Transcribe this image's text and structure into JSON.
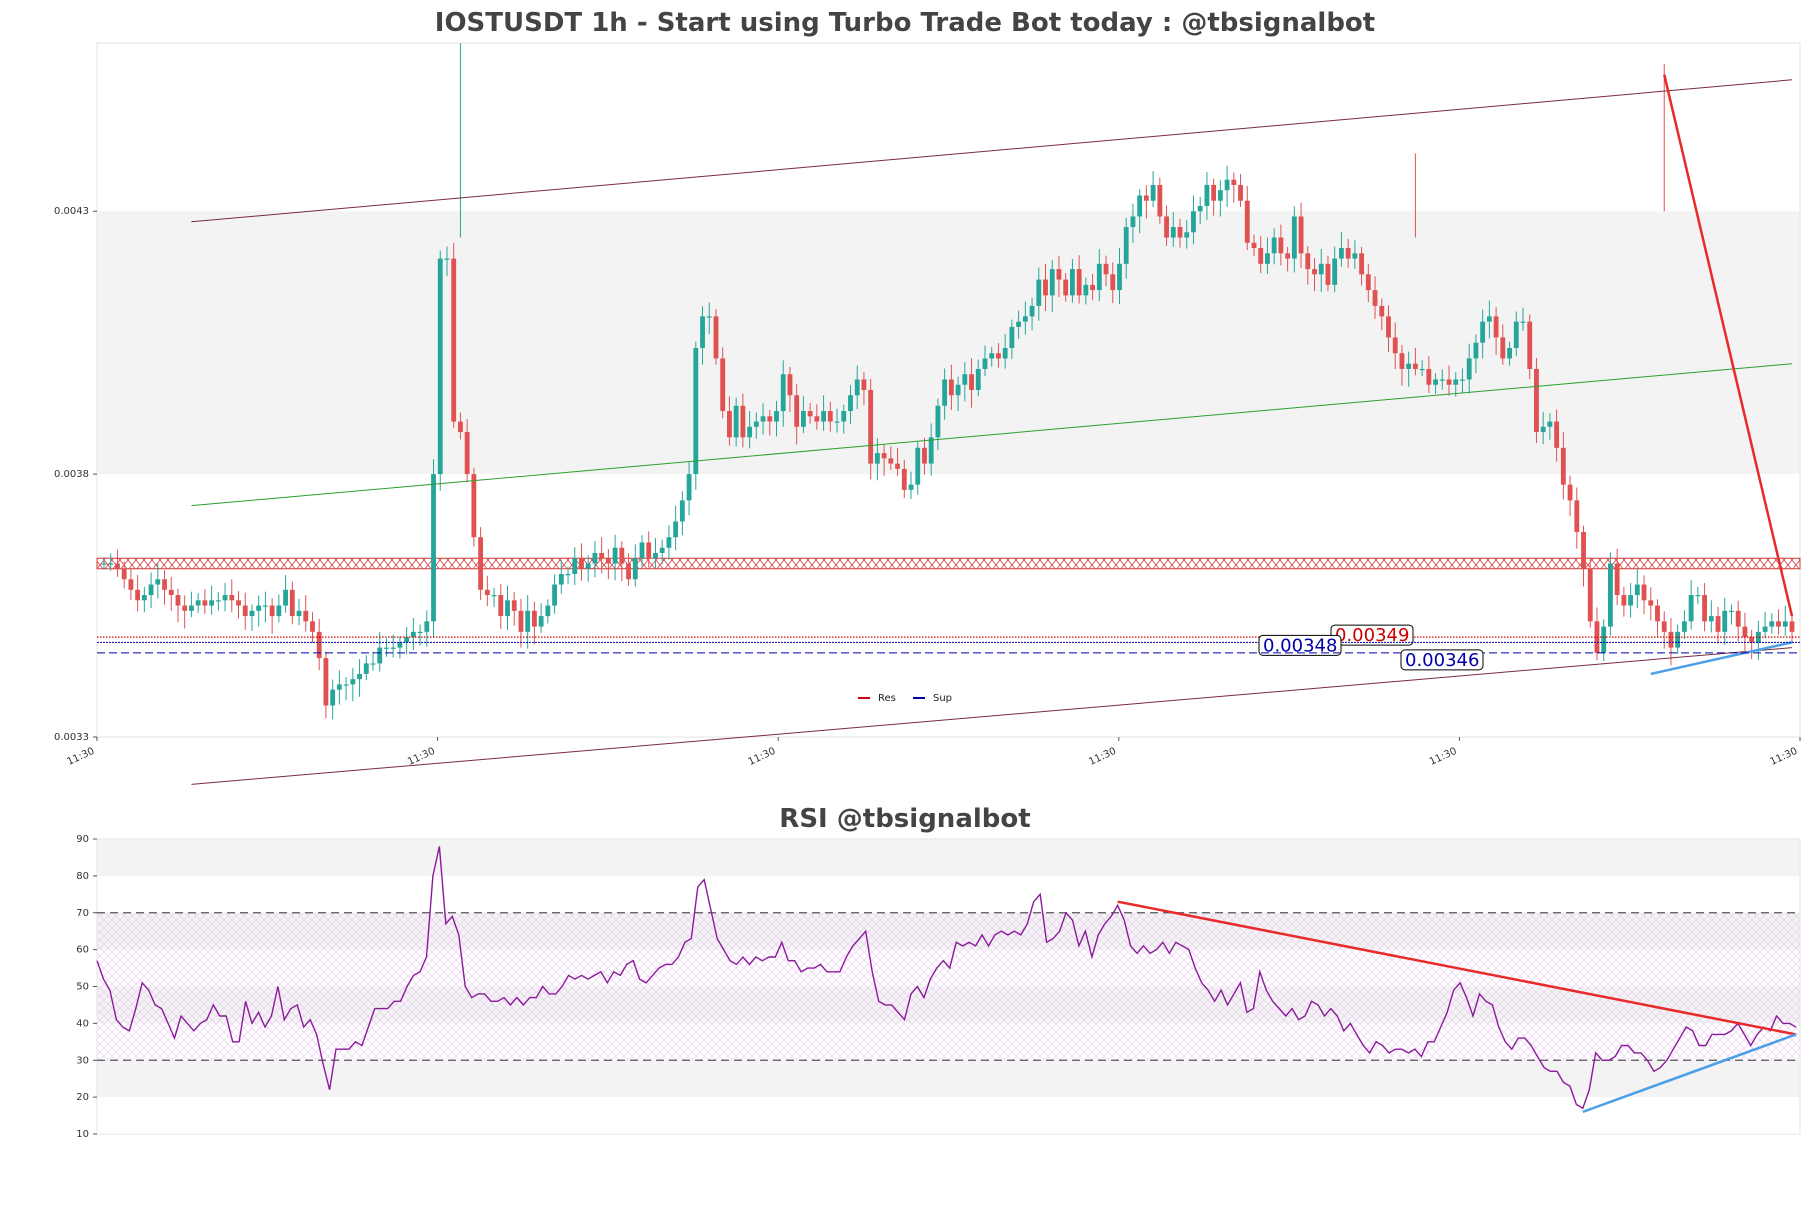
{
  "chart_data": [
    {
      "type": "candlestick",
      "title": "IOSTUSDT 1h - Start using Turbo Trade Bot today : @tbsignalbot",
      "ylim": [
        0.0033,
        0.00462
      ],
      "y_ticks": [
        0.0033,
        0.0038,
        0.0043
      ],
      "y_tick_labels": [
        "0.0033",
        "0.0038",
        "0.0043"
      ],
      "x_tick_labels": [
        "11:30",
        "11:30",
        "11:30",
        "11:30",
        "11:30",
        "11:30"
      ],
      "grid": "bands",
      "colors": {
        "up": "#26a69a",
        "down": "#e05252",
        "res": "#cc0000",
        "sup": "#0000aa",
        "channel": "#7a2a3a",
        "midline": "#2ca02c",
        "trend_down": "#e82a2a",
        "trend_up": "#4a9fe8"
      },
      "close": [
        0.00363,
        0.00363,
        0.00362,
        0.0036,
        0.00358,
        0.00356,
        0.00357,
        0.00359,
        0.0036,
        0.00358,
        0.00357,
        0.00355,
        0.00354,
        0.00355,
        0.00356,
        0.00355,
        0.00356,
        0.00356,
        0.00357,
        0.00356,
        0.00355,
        0.00353,
        0.00354,
        0.00355,
        0.00355,
        0.00353,
        0.00355,
        0.00358,
        0.00353,
        0.00354,
        0.00352,
        0.0035,
        0.00345,
        0.00336,
        0.00339,
        0.0034,
        0.0034,
        0.00341,
        0.00342,
        0.00344,
        0.00344,
        0.00347,
        0.00347,
        0.00347,
        0.00348,
        0.00349,
        0.0035,
        0.0035,
        0.00352,
        0.0038,
        0.00421,
        0.00421,
        0.0039,
        0.00388,
        0.0038,
        0.00368,
        0.00358,
        0.00357,
        0.00357,
        0.00353,
        0.00356,
        0.00354,
        0.0035,
        0.00354,
        0.00351,
        0.00353,
        0.00355,
        0.00359,
        0.00361,
        0.00361,
        0.00364,
        0.00362,
        0.00363,
        0.00365,
        0.00364,
        0.00363,
        0.00366,
        0.00363,
        0.0036,
        0.00364,
        0.00367,
        0.00364,
        0.00365,
        0.00366,
        0.00368,
        0.00371,
        0.00375,
        0.0038,
        0.00404,
        0.0041,
        0.0041,
        0.00402,
        0.00392,
        0.00387,
        0.00393,
        0.00387,
        0.00389,
        0.0039,
        0.00391,
        0.0039,
        0.00392,
        0.00399,
        0.00395,
        0.00389,
        0.00392,
        0.00391,
        0.0039,
        0.00392,
        0.0039,
        0.0039,
        0.00392,
        0.00395,
        0.00398,
        0.00396,
        0.00382,
        0.00384,
        0.00383,
        0.00382,
        0.00381,
        0.00377,
        0.00378,
        0.00385,
        0.00382,
        0.00387,
        0.00393,
        0.00398,
        0.00395,
        0.00397,
        0.00399,
        0.00396,
        0.004,
        0.00402,
        0.00403,
        0.00402,
        0.00404,
        0.00408,
        0.00409,
        0.0041,
        0.00412,
        0.00417,
        0.00414,
        0.00419,
        0.00417,
        0.00414,
        0.00419,
        0.00414,
        0.00416,
        0.00415,
        0.0042,
        0.00418,
        0.00415,
        0.0042,
        0.00427,
        0.00429,
        0.00433,
        0.00432,
        0.00435,
        0.00429,
        0.00425,
        0.00427,
        0.00425,
        0.00426,
        0.0043,
        0.00431,
        0.00435,
        0.00432,
        0.00434,
        0.00436,
        0.00435,
        0.00432,
        0.00424,
        0.00423,
        0.0042,
        0.00422,
        0.00425,
        0.00422,
        0.00421,
        0.00429,
        0.00422,
        0.00419,
        0.00418,
        0.0042,
        0.00416,
        0.00421,
        0.00423,
        0.00421,
        0.00422,
        0.00418,
        0.00415,
        0.00412,
        0.0041,
        0.00406,
        0.00403,
        0.004,
        0.00401,
        0.004,
        0.004,
        0.00397,
        0.00398,
        0.00398,
        0.00397,
        0.00398,
        0.00398,
        0.00402,
        0.00405,
        0.00409,
        0.0041,
        0.00406,
        0.00402,
        0.00404,
        0.00409,
        0.00409,
        0.004,
        0.00388,
        0.00389,
        0.0039,
        0.00385,
        0.00378,
        0.00375,
        0.00369,
        0.00362,
        0.00352,
        0.00346,
        0.00351,
        0.00363,
        0.00357,
        0.00355,
        0.00357,
        0.00359,
        0.00356,
        0.00355,
        0.00352,
        0.0035,
        0.00347,
        0.0035,
        0.00352,
        0.00357,
        0.00357,
        0.00352,
        0.00353,
        0.0035,
        0.00354,
        0.00354,
        0.00351,
        0.00349,
        0.00348,
        0.0035,
        0.00351,
        0.00352,
        0.00351,
        0.00352,
        0.0035
      ],
      "levels": [
        {
          "kind": "res",
          "value": 0.00349,
          "label": "0.00349"
        },
        {
          "kind": "sup",
          "value": 0.00348,
          "label": "0.00348"
        },
        {
          "kind": "sup",
          "value": 0.00346,
          "label": "0.00346"
        }
      ],
      "resistance_zone": [
        0.00362,
        0.00364
      ],
      "legend": [
        "Res",
        "Sup"
      ],
      "legend_position": "bottom-center"
    },
    {
      "type": "line",
      "title": "RSI @tbsignalbot",
      "ylim": [
        10,
        90
      ],
      "y_ticks": [
        10,
        20,
        30,
        40,
        50,
        60,
        70,
        80,
        90
      ],
      "y_tick_labels": [
        "10",
        "20",
        "30",
        "40",
        "50",
        "60",
        "70",
        "80",
        "90"
      ],
      "reference_lines": [
        30,
        70
      ],
      "grid": "bands",
      "colors": {
        "line": "#8b1a9b",
        "trend_down": "#e82a2a",
        "trend_up": "#4a9fe8"
      },
      "values": [
        57,
        52,
        49,
        41,
        39,
        38,
        44,
        51,
        49,
        45,
        44,
        40,
        36,
        42,
        40,
        38,
        40,
        41,
        45,
        42,
        42,
        35,
        35,
        46,
        40,
        43,
        39,
        42,
        50,
        41,
        44,
        45,
        39,
        41,
        37,
        29,
        22,
        33,
        33,
        33,
        35,
        34,
        39,
        44,
        44,
        44,
        46,
        46,
        50,
        53,
        54,
        58,
        80,
        88,
        67,
        69,
        64,
        50,
        47,
        48,
        48,
        46,
        46,
        47,
        45,
        47,
        45,
        47,
        47,
        50,
        48,
        48,
        50,
        53,
        52,
        53,
        52,
        53,
        54,
        51,
        54,
        53,
        56,
        57,
        52,
        51,
        53,
        55,
        56,
        56,
        58,
        62,
        63,
        77,
        79,
        71,
        63,
        60,
        57,
        56,
        58,
        56,
        58,
        57,
        58,
        58,
        62,
        57,
        57,
        54,
        55,
        55,
        56,
        54,
        54,
        54,
        58,
        61,
        63,
        65,
        54,
        46,
        45,
        45,
        43,
        41,
        48,
        50,
        47,
        52,
        55,
        57,
        55,
        62,
        61,
        62,
        61,
        64,
        61,
        64,
        65,
        64,
        65,
        64,
        67,
        73,
        75,
        62,
        63,
        65,
        70,
        68,
        61,
        65,
        58,
        64,
        67,
        69,
        72,
        68,
        61,
        59,
        61,
        59,
        60,
        62,
        59,
        62,
        61,
        60,
        55,
        51,
        49,
        46,
        49,
        45,
        48,
        51,
        43,
        44,
        54,
        49,
        46,
        44,
        42,
        44,
        41,
        42,
        46,
        45,
        42,
        44,
        42,
        38,
        40,
        37,
        34,
        32,
        35,
        34,
        32,
        33,
        33,
        32,
        33,
        31,
        35,
        35,
        39,
        43,
        49,
        51,
        47,
        42,
        48,
        46,
        45,
        39,
        35,
        33,
        36,
        36,
        34,
        31,
        28,
        27,
        27,
        24,
        23,
        18,
        17,
        22,
        32,
        30,
        30,
        31,
        34,
        34,
        32,
        32,
        30,
        27,
        28,
        30,
        33,
        36,
        39,
        38,
        34,
        34,
        37,
        37,
        37,
        38,
        40,
        37,
        34,
        37,
        39,
        38,
        42,
        40,
        40,
        39
      ]
    }
  ]
}
